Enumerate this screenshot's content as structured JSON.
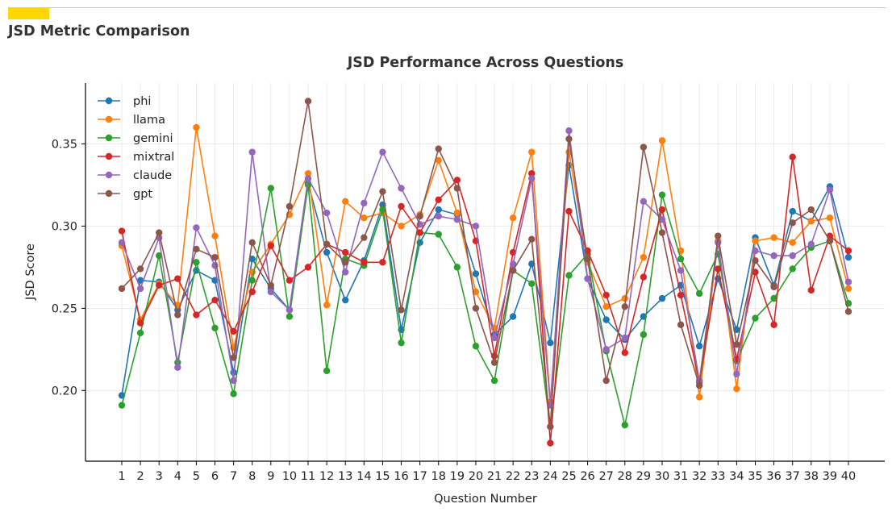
{
  "page": {
    "heading": "JSD Metric Comparison",
    "accent_color": "#ffd700"
  },
  "chart_data": {
    "type": "line",
    "title": "JSD Performance Across Questions",
    "xlabel": "Question Number",
    "ylabel": "JSD Score",
    "x": [
      1,
      2,
      3,
      4,
      5,
      6,
      7,
      8,
      9,
      10,
      11,
      12,
      13,
      14,
      15,
      16,
      17,
      18,
      19,
      20,
      21,
      22,
      23,
      24,
      25,
      26,
      27,
      28,
      29,
      30,
      31,
      32,
      33,
      34,
      35,
      36,
      37,
      38,
      39,
      40
    ],
    "ylim": [
      0.157,
      0.387
    ],
    "yticks": [
      0.2,
      0.25,
      0.3,
      0.35
    ],
    "ytick_labels": [
      "0.20",
      "0.25",
      "0.30",
      "0.35"
    ],
    "grid": true,
    "legend_position": "top-left",
    "series": [
      {
        "name": "phi",
        "color": "#1f77b4",
        "values": [
          0.197,
          0.267,
          0.266,
          0.249,
          0.273,
          0.267,
          0.211,
          0.28,
          0.262,
          0.249,
          0.326,
          0.284,
          0.255,
          0.279,
          0.313,
          0.237,
          0.29,
          0.31,
          0.307,
          0.271,
          0.234,
          0.245,
          0.277,
          0.229,
          0.337,
          0.268,
          0.243,
          0.231,
          0.245,
          0.256,
          0.264,
          0.227,
          0.268,
          0.237,
          0.293,
          0.264,
          0.309,
          0.303,
          0.324,
          0.281
        ]
      },
      {
        "name": "llama",
        "color": "#ff7f0e",
        "values": [
          0.288,
          0.243,
          0.265,
          0.252,
          0.36,
          0.294,
          0.226,
          0.272,
          0.289,
          0.307,
          0.332,
          0.252,
          0.315,
          0.305,
          0.308,
          0.3,
          0.307,
          0.34,
          0.308,
          0.26,
          0.238,
          0.305,
          0.345,
          0.193,
          0.345,
          0.278,
          0.251,
          0.256,
          0.281,
          0.352,
          0.285,
          0.196,
          0.291,
          0.201,
          0.291,
          0.293,
          0.29,
          0.303,
          0.305,
          0.262
        ]
      },
      {
        "name": "gemini",
        "color": "#2ca02c",
        "values": [
          0.191,
          0.235,
          0.282,
          0.217,
          0.278,
          0.238,
          0.198,
          0.267,
          0.323,
          0.245,
          0.325,
          0.212,
          0.28,
          0.276,
          0.31,
          0.229,
          0.296,
          0.295,
          0.275,
          0.227,
          0.206,
          0.273,
          0.265,
          0.178,
          0.27,
          0.283,
          0.224,
          0.179,
          0.234,
          0.319,
          0.28,
          0.259,
          0.283,
          0.218,
          0.244,
          0.256,
          0.274,
          0.287,
          0.291,
          0.253
        ]
      },
      {
        "name": "mixtral",
        "color": "#d62728",
        "values": [
          0.297,
          0.241,
          0.264,
          0.268,
          0.246,
          0.255,
          0.236,
          0.26,
          0.288,
          0.267,
          0.275,
          0.289,
          0.284,
          0.278,
          0.278,
          0.312,
          0.296,
          0.316,
          0.328,
          0.291,
          0.221,
          0.284,
          0.332,
          0.168,
          0.309,
          0.285,
          0.258,
          0.223,
          0.269,
          0.31,
          0.258,
          0.205,
          0.274,
          0.219,
          0.272,
          0.24,
          0.342,
          0.261,
          0.294,
          0.285
        ]
      },
      {
        "name": "claude",
        "color": "#9467bd",
        "values": [
          0.29,
          0.262,
          0.293,
          0.214,
          0.299,
          0.276,
          0.206,
          0.345,
          0.26,
          0.249,
          0.329,
          0.308,
          0.272,
          0.314,
          0.345,
          0.323,
          0.301,
          0.306,
          0.304,
          0.3,
          0.232,
          0.277,
          0.329,
          0.191,
          0.358,
          0.268,
          0.225,
          0.232,
          0.315,
          0.304,
          0.273,
          0.206,
          0.29,
          0.21,
          0.285,
          0.282,
          0.282,
          0.289,
          0.322,
          0.266
        ]
      },
      {
        "name": "gpt",
        "color": "#8c564b",
        "values": [
          0.262,
          0.274,
          0.296,
          0.246,
          0.286,
          0.281,
          0.22,
          0.29,
          0.264,
          0.312,
          0.376,
          0.289,
          0.278,
          0.293,
          0.321,
          0.249,
          0.306,
          0.347,
          0.323,
          0.25,
          0.217,
          0.273,
          0.292,
          0.178,
          0.353,
          0.28,
          0.206,
          0.251,
          0.348,
          0.296,
          0.24,
          0.203,
          0.294,
          0.228,
          0.279,
          0.263,
          0.302,
          0.31,
          0.291,
          0.248
        ]
      }
    ]
  }
}
